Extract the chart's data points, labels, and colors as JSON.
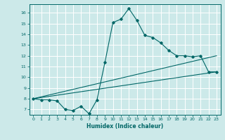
{
  "bg_color": "#cce9e9",
  "grid_color": "#ffffff",
  "line_color": "#006666",
  "xlabel": "Humidex (Indice chaleur)",
  "xlim": [
    -0.5,
    23.5
  ],
  "ylim": [
    6.5,
    16.8
  ],
  "yticks": [
    7,
    8,
    9,
    10,
    11,
    12,
    13,
    14,
    15,
    16
  ],
  "xticks": [
    0,
    1,
    2,
    3,
    4,
    5,
    6,
    7,
    8,
    9,
    10,
    11,
    12,
    13,
    14,
    15,
    16,
    17,
    18,
    19,
    20,
    21,
    22,
    23
  ],
  "curve1_x": [
    0,
    1,
    2,
    3,
    4,
    5,
    6,
    7,
    8,
    9,
    10,
    11,
    12,
    13,
    14,
    15,
    16,
    17,
    18,
    19,
    20,
    21,
    22,
    23
  ],
  "curve1_y": [
    8.0,
    7.9,
    7.9,
    7.8,
    7.0,
    6.9,
    7.3,
    6.6,
    7.9,
    11.4,
    15.1,
    15.4,
    16.4,
    15.3,
    13.9,
    13.7,
    13.2,
    12.5,
    12.0,
    12.0,
    11.9,
    12.0,
    10.5,
    10.5
  ],
  "curve2_x": [
    0,
    23
  ],
  "curve2_y": [
    8.0,
    12.0
  ],
  "curve3_x": [
    0,
    23
  ],
  "curve3_y": [
    8.0,
    10.5
  ]
}
